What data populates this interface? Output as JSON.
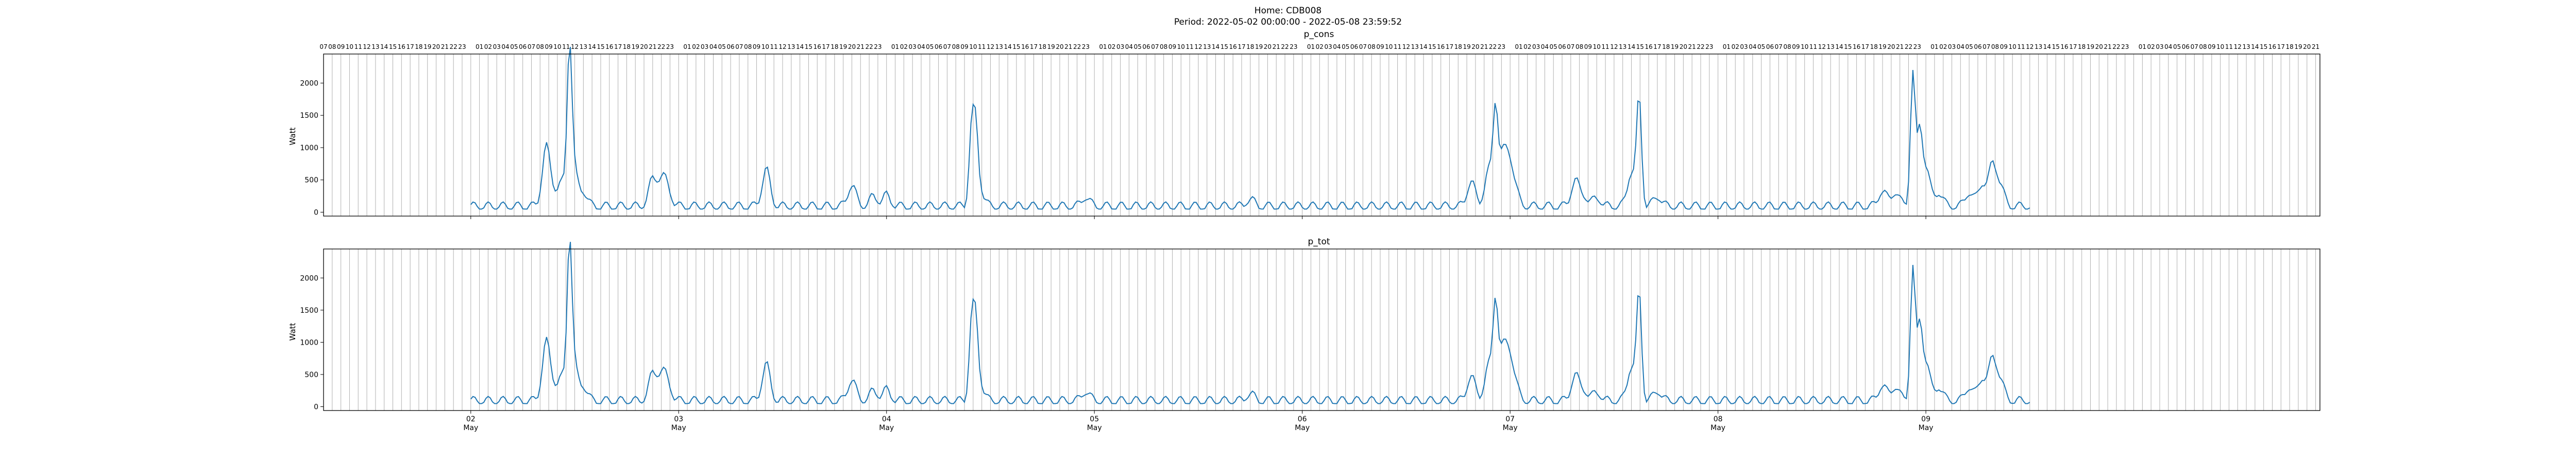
{
  "figure": {
    "title_line1": "Home: CDB008",
    "title_line2": "Period: 2022-05-02 00:00:00 - 2022-05-08 23:59:52"
  },
  "colors": {
    "line": "#1f77b4",
    "grid": "#b0b0b0",
    "frame": "#000000"
  },
  "chart_data": [
    {
      "type": "line",
      "title": "p_cons",
      "ylabel": "Watt",
      "ylim": [
        -60,
        2450
      ],
      "yticks": [
        0,
        500,
        1000,
        1500,
        2000
      ],
      "xlim_hours": [
        -17.0,
        213.5
      ],
      "date_labels": [
        {
          "day": "02",
          "month": "May"
        },
        {
          "day": "03",
          "month": "May"
        },
        {
          "day": "04",
          "month": "May"
        },
        {
          "day": "05",
          "month": "May"
        },
        {
          "day": "06",
          "month": "May"
        },
        {
          "day": "07",
          "month": "May"
        },
        {
          "day": "08",
          "month": "May"
        },
        {
          "day": "09",
          "month": "May"
        }
      ],
      "hour_tick_labels": [
        "00",
        "01",
        "02",
        "03",
        "04",
        "05",
        "06",
        "07",
        "08",
        "09",
        "10",
        "11",
        "12",
        "13",
        "14",
        "15",
        "16",
        "17",
        "18",
        "19",
        "20",
        "21",
        "22",
        "23"
      ],
      "grid": "vertical hourly lines",
      "base_level_watt": 90,
      "base_variation_watt": 70,
      "events": [
        {
          "hour": 8.7,
          "value": 980
        },
        {
          "hour": 9.5,
          "value": 250
        },
        {
          "hour": 10.5,
          "value": 430
        },
        {
          "hour": 11.4,
          "value": 2370
        },
        {
          "hour": 11.9,
          "value": 600
        },
        {
          "hour": 13.0,
          "value": 300
        },
        {
          "hour": 21.0,
          "value": 500
        },
        {
          "hour": 22.0,
          "value": 440
        },
        {
          "hour": 22.7,
          "value": 350
        },
        {
          "hour": 34.1,
          "value": 660
        },
        {
          "hour": 44.0,
          "value": 420
        },
        {
          "hour": 46.5,
          "value": 240
        },
        {
          "hour": 48.0,
          "value": 260
        },
        {
          "hour": 57.8,
          "value": 1210
        },
        {
          "hour": 58.3,
          "value": 1150
        },
        {
          "hour": 58.8,
          "value": 340
        },
        {
          "hour": 71.0,
          "value": 230
        },
        {
          "hour": 90.0,
          "value": 200
        },
        {
          "hour": 115.5,
          "value": 480
        },
        {
          "hour": 117.5,
          "value": 630
        },
        {
          "hour": 118.3,
          "value": 1450
        },
        {
          "hour": 119.0,
          "value": 760
        },
        {
          "hour": 119.8,
          "value": 740
        },
        {
          "hour": 120.5,
          "value": 350
        },
        {
          "hour": 127.5,
          "value": 480
        },
        {
          "hour": 128.5,
          "value": 240
        },
        {
          "hour": 130.0,
          "value": 220
        },
        {
          "hour": 134.0,
          "value": 620
        },
        {
          "hour": 134.9,
          "value": 1750
        },
        {
          "hour": 137.0,
          "value": 240
        },
        {
          "hour": 163.0,
          "value": 330
        },
        {
          "hour": 164.5,
          "value": 310
        },
        {
          "hour": 166.5,
          "value": 2180
        },
        {
          "hour": 167.3,
          "value": 1150
        },
        {
          "hour": 168.0,
          "value": 700
        },
        {
          "hour": 169.5,
          "value": 300
        },
        {
          "hour": 173.0,
          "value": 300
        },
        {
          "hour": 174.5,
          "value": 430
        },
        {
          "hour": 175.7,
          "value": 720
        },
        {
          "hour": 176.6,
          "value": 380
        }
      ]
    },
    {
      "type": "line",
      "title": "p_tot",
      "ylabel": "Watt",
      "ylim": [
        -60,
        2450
      ],
      "yticks": [
        0,
        500,
        1000,
        1500,
        2000
      ],
      "xlim_hours": [
        -17.0,
        213.5
      ],
      "date_labels": [
        {
          "day": "02",
          "month": "May"
        },
        {
          "day": "03",
          "month": "May"
        },
        {
          "day": "04",
          "month": "May"
        },
        {
          "day": "05",
          "month": "May"
        },
        {
          "day": "06",
          "month": "May"
        },
        {
          "day": "07",
          "month": "May"
        },
        {
          "day": "08",
          "month": "May"
        },
        {
          "day": "09",
          "month": "May"
        }
      ],
      "grid": "vertical hourly lines",
      "base_level_watt": 90,
      "base_variation_watt": 70,
      "events": [
        {
          "hour": 8.7,
          "value": 980
        },
        {
          "hour": 9.5,
          "value": 250
        },
        {
          "hour": 10.5,
          "value": 430
        },
        {
          "hour": 11.4,
          "value": 2370
        },
        {
          "hour": 11.9,
          "value": 600
        },
        {
          "hour": 13.0,
          "value": 300
        },
        {
          "hour": 21.0,
          "value": 500
        },
        {
          "hour": 22.0,
          "value": 440
        },
        {
          "hour": 22.7,
          "value": 350
        },
        {
          "hour": 34.1,
          "value": 660
        },
        {
          "hour": 44.0,
          "value": 420
        },
        {
          "hour": 46.5,
          "value": 240
        },
        {
          "hour": 48.0,
          "value": 260
        },
        {
          "hour": 57.8,
          "value": 1210
        },
        {
          "hour": 58.3,
          "value": 1150
        },
        {
          "hour": 58.8,
          "value": 340
        },
        {
          "hour": 71.0,
          "value": 230
        },
        {
          "hour": 90.0,
          "value": 200
        },
        {
          "hour": 115.5,
          "value": 480
        },
        {
          "hour": 117.5,
          "value": 630
        },
        {
          "hour": 118.3,
          "value": 1450
        },
        {
          "hour": 119.0,
          "value": 760
        },
        {
          "hour": 119.8,
          "value": 740
        },
        {
          "hour": 120.5,
          "value": 350
        },
        {
          "hour": 127.5,
          "value": 480
        },
        {
          "hour": 128.5,
          "value": 240
        },
        {
          "hour": 130.0,
          "value": 220
        },
        {
          "hour": 134.0,
          "value": 620
        },
        {
          "hour": 134.9,
          "value": 1750
        },
        {
          "hour": 137.0,
          "value": 240
        },
        {
          "hour": 163.0,
          "value": 330
        },
        {
          "hour": 164.5,
          "value": 310
        },
        {
          "hour": 166.5,
          "value": 2180
        },
        {
          "hour": 167.3,
          "value": 1150
        },
        {
          "hour": 168.0,
          "value": 700
        },
        {
          "hour": 169.5,
          "value": 300
        },
        {
          "hour": 173.0,
          "value": 300
        },
        {
          "hour": 174.5,
          "value": 430
        },
        {
          "hour": 175.7,
          "value": 720
        },
        {
          "hour": 176.6,
          "value": 380
        }
      ]
    }
  ]
}
